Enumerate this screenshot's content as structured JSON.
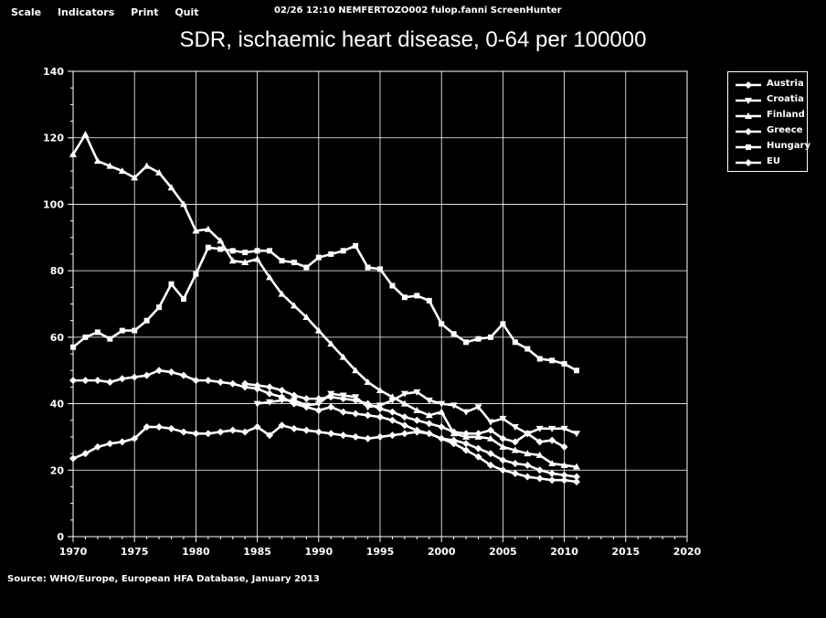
{
  "menu": {
    "scale": "Scale",
    "indicators": "Indicators",
    "print": "Print",
    "quit": "Quit"
  },
  "status_line": "02/26  12:10  NEMFERTOZO002  fulop.fanni  ScreenHunter",
  "source": "Source: WHO/Europe, European HFA Database, January 2013",
  "colors": {
    "background": "#000000",
    "foreground": "#ffffff"
  },
  "chart_data": {
    "type": "line",
    "title": "SDR, ischaemic heart disease, 0-64 per 100000",
    "xlabel": "",
    "ylabel": "",
    "xlim": [
      1970,
      2020
    ],
    "ylim": [
      0,
      140
    ],
    "xticks": [
      1970,
      1975,
      1980,
      1985,
      1990,
      1995,
      2000,
      2005,
      2010,
      2015,
      2020
    ],
    "yticks": [
      0,
      20,
      40,
      60,
      80,
      100,
      120,
      140
    ],
    "grid": true,
    "legend_position": "top-right, outside plot",
    "series": [
      {
        "name": "Austria",
        "marker": "diamond",
        "x": [
          1970,
          1971,
          1972,
          1973,
          1974,
          1975,
          1976,
          1977,
          1978,
          1979,
          1980,
          1981,
          1982,
          1983,
          1984,
          1985,
          1986,
          1987,
          1988,
          1989,
          1990,
          1991,
          1992,
          1993,
          1994,
          1995,
          1996,
          1997,
          1998,
          1999,
          2000,
          2001,
          2002,
          2003,
          2004,
          2005,
          2006,
          2007,
          2008,
          2009,
          2010,
          2011
        ],
        "y": [
          47,
          47,
          47,
          46.5,
          47.5,
          48,
          48.5,
          50,
          49.5,
          48.5,
          47,
          47,
          46.5,
          46,
          45,
          44.5,
          43,
          42,
          40,
          39,
          38,
          39,
          37.5,
          37,
          36.5,
          36,
          35,
          33.5,
          32,
          31,
          29.5,
          28,
          26,
          24,
          21.5,
          20,
          19,
          18,
          17.5,
          17,
          17,
          16.5
        ]
      },
      {
        "name": "Croatia",
        "marker": "triangle-down",
        "x": [
          1985,
          1986,
          1987,
          1988,
          1989,
          1990,
          1991,
          1992,
          1993,
          1994,
          1995,
          1996,
          1997,
          1998,
          1999,
          2000,
          2001,
          2002,
          2003,
          2004,
          2005,
          2006,
          2007,
          2008,
          2009,
          2010,
          2011
        ],
        "y": [
          40,
          40.5,
          41,
          41,
          39.5,
          40,
          43,
          42.5,
          42,
          39,
          39.5,
          41,
          43,
          43.5,
          41,
          40,
          39.5,
          37.5,
          39,
          34.5,
          35.5,
          33,
          31,
          32.5,
          32.5,
          32.5,
          31
        ]
      },
      {
        "name": "Finland",
        "marker": "triangle-up",
        "x": [
          1970,
          1971,
          1972,
          1973,
          1974,
          1975,
          1976,
          1977,
          1978,
          1979,
          1980,
          1981,
          1982,
          1983,
          1984,
          1985,
          1986,
          1987,
          1988,
          1989,
          1990,
          1991,
          1992,
          1993,
          1994,
          1995,
          1996,
          1997,
          1998,
          1999,
          2000,
          2001,
          2002,
          2003,
          2004,
          2005,
          2006,
          2007,
          2008,
          2009,
          2010,
          2011
        ],
        "y": [
          115,
          121,
          113,
          111.5,
          110,
          108,
          111.5,
          109.5,
          105,
          100,
          92,
          92.5,
          89,
          83,
          82.5,
          83.5,
          78,
          73,
          69.5,
          66,
          62,
          58,
          54,
          50,
          46.5,
          44,
          42,
          40,
          38,
          36.5,
          37.5,
          31,
          30,
          30,
          29.5,
          27,
          26,
          25,
          24.5,
          22,
          21.5,
          21
        ]
      },
      {
        "name": "Greece",
        "marker": "diamond",
        "x": [
          1984,
          1985,
          1986,
          1987,
          1988,
          1989,
          1990,
          1991,
          1992,
          1993,
          1994,
          1995,
          1996,
          1997,
          1998,
          1999,
          2000,
          2001,
          2002,
          2003,
          2004,
          2005,
          2006,
          2007,
          2008,
          2009,
          2010
        ],
        "y": [
          46,
          45.5,
          45,
          44,
          42.5,
          41.5,
          41.5,
          42,
          41.5,
          41,
          40,
          38.5,
          37.5,
          36,
          35,
          34,
          33,
          31.5,
          31,
          31,
          32,
          29.5,
          28.5,
          31,
          28.5,
          29,
          27
        ]
      },
      {
        "name": "Hungary",
        "marker": "square",
        "x": [
          1970,
          1971,
          1972,
          1973,
          1974,
          1975,
          1976,
          1977,
          1978,
          1979,
          1980,
          1981,
          1982,
          1983,
          1984,
          1985,
          1986,
          1987,
          1988,
          1989,
          1990,
          1991,
          1992,
          1993,
          1994,
          1995,
          1996,
          1997,
          1998,
          1999,
          2000,
          2001,
          2002,
          2003,
          2004,
          2005,
          2006,
          2007,
          2008,
          2009,
          2010,
          2011
        ],
        "y": [
          57,
          60,
          61.5,
          59.5,
          62,
          62,
          65,
          69,
          76,
          71.5,
          79,
          87,
          86.5,
          86,
          85.5,
          86,
          86,
          83,
          82.5,
          81,
          84,
          85,
          86,
          87.5,
          81,
          80.5,
          75.5,
          72,
          72.5,
          71,
          64,
          61,
          58.5,
          59.5,
          60,
          64,
          58.5,
          56.5,
          53.5,
          53,
          52,
          50
        ]
      },
      {
        "name": "EU",
        "marker": "diamond",
        "x": [
          1970,
          1971,
          1972,
          1973,
          1974,
          1975,
          1976,
          1977,
          1978,
          1979,
          1980,
          1981,
          1982,
          1983,
          1984,
          1985,
          1986,
          1987,
          1988,
          1989,
          1990,
          1991,
          1992,
          1993,
          1994,
          1995,
          1996,
          1997,
          1998,
          1999,
          2000,
          2001,
          2002,
          2003,
          2004,
          2005,
          2006,
          2007,
          2008,
          2009,
          2010,
          2011
        ],
        "y": [
          23.5,
          25,
          27,
          28,
          28.5,
          29.5,
          33,
          33,
          32.5,
          31.5,
          31,
          31,
          31.5,
          32,
          31.5,
          33,
          30.5,
          33.5,
          32.5,
          32,
          31.5,
          31,
          30.5,
          30,
          29.5,
          30,
          30.5,
          31,
          31.5,
          31,
          29.5,
          29,
          28,
          26.5,
          25,
          23,
          22,
          21.5,
          20,
          19,
          18.5,
          18
        ]
      }
    ]
  }
}
